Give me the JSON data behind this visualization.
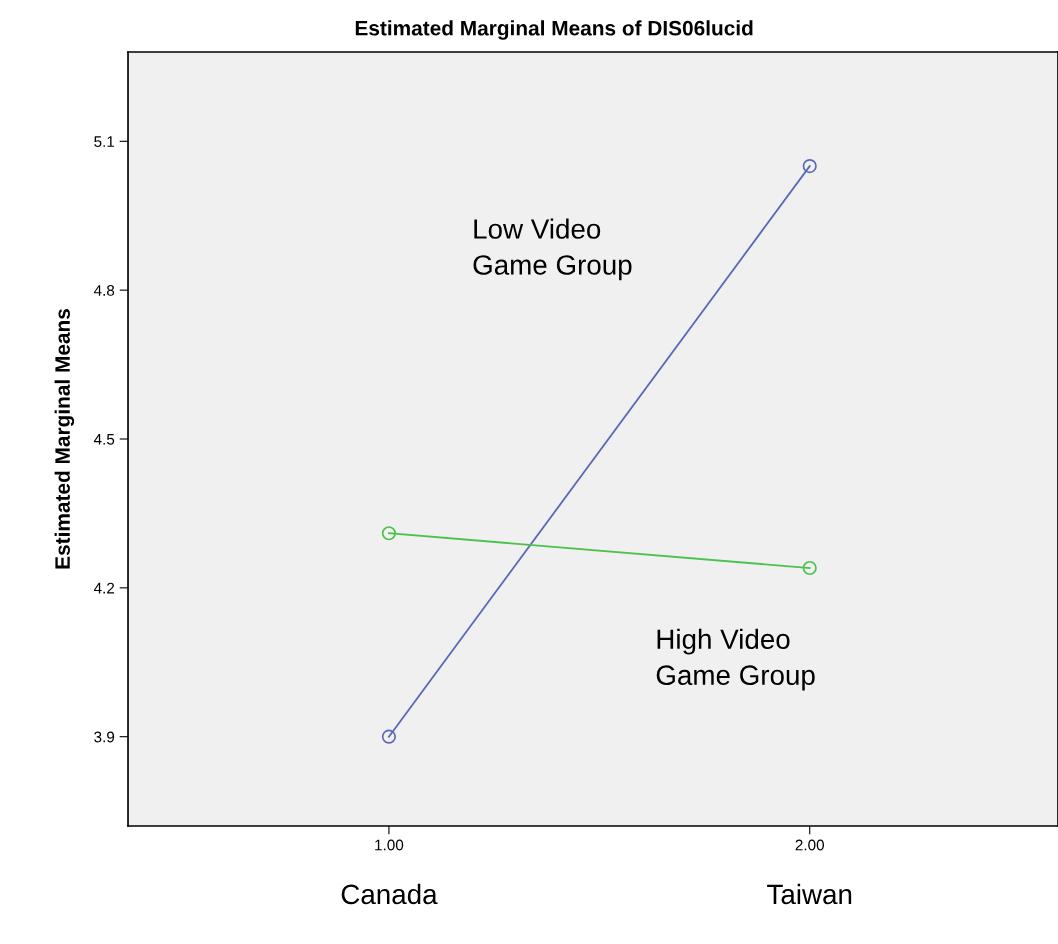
{
  "chart_data": {
    "type": "line",
    "title": "Estimated Marginal Means of DIS06lucid",
    "ylabel": "Estimated Marginal Means",
    "x": [
      1,
      2
    ],
    "xlim": [
      0.38,
      2.59
    ],
    "xticks": [
      {
        "value": 1,
        "label": "1.00"
      },
      {
        "value": 2,
        "label": "2.00"
      }
    ],
    "ylim": [
      3.72,
      5.28
    ],
    "yticks": [
      3.9,
      4.2,
      4.5,
      4.8,
      5.1
    ],
    "series": [
      {
        "name": "Low Video\nGame Group",
        "color": "#5a68b8",
        "values": [
          3.9,
          5.05
        ]
      },
      {
        "name": "High Video\nGame Group",
        "color": "#4cc24c",
        "values": [
          4.31,
          4.24
        ]
      }
    ],
    "annotations": [
      "Canada",
      "Taiwan"
    ],
    "marker": "circle",
    "grid": false,
    "legend": false
  }
}
